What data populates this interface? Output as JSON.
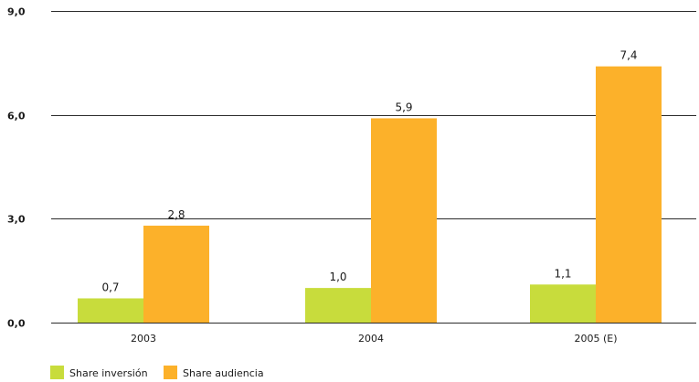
{
  "chart_data": {
    "type": "bar",
    "categories": [
      "2003",
      "2004",
      "2005 (E)"
    ],
    "series": [
      {
        "name": "Share inversión",
        "color": "#c8dc3c",
        "values": [
          0.7,
          1.0,
          1.1
        ],
        "labels": [
          "0,7",
          "1,0",
          "1,1"
        ]
      },
      {
        "name": "Share audiencia",
        "color": "#fcb12a",
        "values": [
          2.8,
          5.9,
          7.4
        ],
        "labels": [
          "2,8",
          "5,9",
          "7,4"
        ]
      }
    ],
    "ylim": [
      0,
      9
    ],
    "yticks": [
      {
        "value": 0,
        "label": "0,0"
      },
      {
        "value": 3,
        "label": "3,0"
      },
      {
        "value": 6,
        "label": "6,0"
      },
      {
        "value": 9,
        "label": "9,0"
      }
    ],
    "grid": true,
    "legend_position": "bottom-left",
    "title": "",
    "xlabel": "",
    "ylabel": ""
  }
}
